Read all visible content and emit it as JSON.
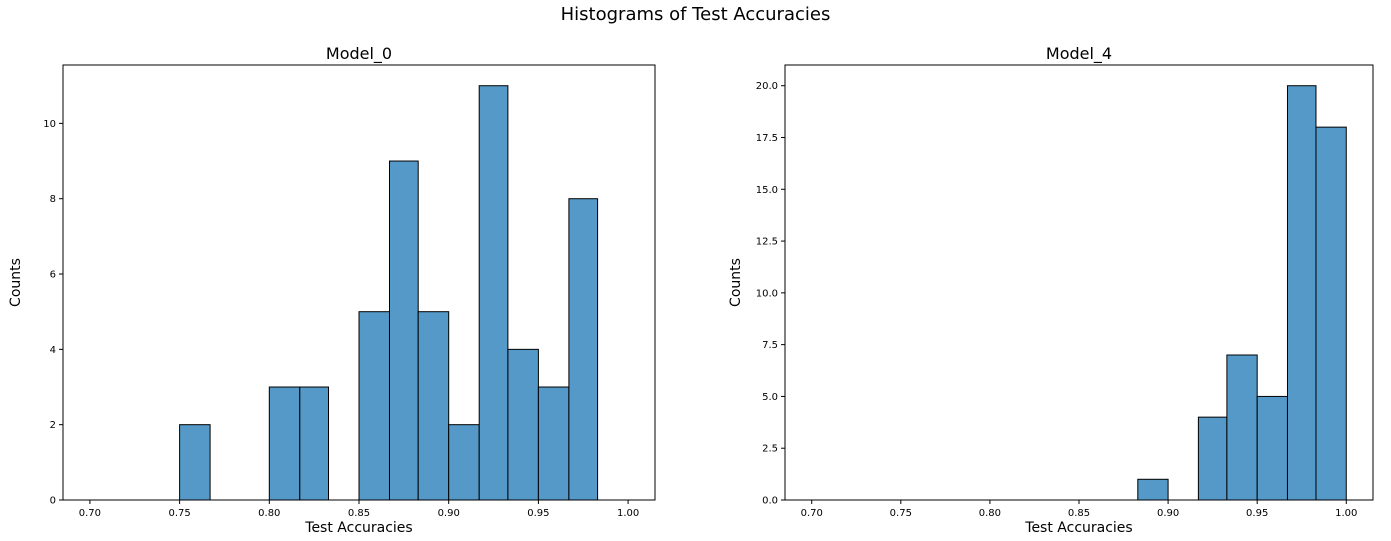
{
  "figure": {
    "title": "Histograms of Test Accuracies"
  },
  "colors": {
    "bar_fill": "#5499c7",
    "bar_edge": "#000000",
    "axes": "#000000"
  },
  "chart_data": [
    {
      "type": "bar",
      "title": "Model_0",
      "xlabel": "Test Accuracies",
      "ylabel": "Counts",
      "xlim": [
        0.685,
        1.015
      ],
      "ylim": [
        0,
        11.55
      ],
      "xticks": [
        "0.70",
        "0.75",
        "0.80",
        "0.85",
        "0.90",
        "0.95",
        "1.00"
      ],
      "yticks": [
        "0",
        "2",
        "4",
        "6",
        "8",
        "10"
      ],
      "bin_edges": [
        0.75,
        0.767,
        0.8,
        0.817,
        0.833,
        0.85,
        0.867,
        0.883,
        0.9,
        0.917,
        0.933,
        0.95,
        0.967,
        0.983
      ],
      "bars": [
        {
          "x0": 0.75,
          "x1": 0.767,
          "count": 2
        },
        {
          "x0": 0.8,
          "x1": 0.817,
          "count": 3
        },
        {
          "x0": 0.817,
          "x1": 0.833,
          "count": 3
        },
        {
          "x0": 0.85,
          "x1": 0.867,
          "count": 5
        },
        {
          "x0": 0.867,
          "x1": 0.883,
          "count": 9
        },
        {
          "x0": 0.883,
          "x1": 0.9,
          "count": 5
        },
        {
          "x0": 0.9,
          "x1": 0.917,
          "count": 2
        },
        {
          "x0": 0.917,
          "x1": 0.933,
          "count": 11
        },
        {
          "x0": 0.933,
          "x1": 0.95,
          "count": 4
        },
        {
          "x0": 0.95,
          "x1": 0.967,
          "count": 3
        },
        {
          "x0": 0.967,
          "x1": 0.983,
          "count": 8
        }
      ]
    },
    {
      "type": "bar",
      "title": "Model_4",
      "xlabel": "Test Accuracies",
      "ylabel": "Counts",
      "xlim": [
        0.685,
        1.015
      ],
      "ylim": [
        0,
        21
      ],
      "xticks": [
        "0.70",
        "0.75",
        "0.80",
        "0.85",
        "0.90",
        "0.95",
        "1.00"
      ],
      "yticks": [
        "0.0",
        "2.5",
        "5.0",
        "7.5",
        "10.0",
        "12.5",
        "15.0",
        "17.5",
        "20.0"
      ],
      "bars": [
        {
          "x0": 0.883,
          "x1": 0.9,
          "count": 1
        },
        {
          "x0": 0.917,
          "x1": 0.933,
          "count": 4
        },
        {
          "x0": 0.933,
          "x1": 0.95,
          "count": 7
        },
        {
          "x0": 0.95,
          "x1": 0.967,
          "count": 5
        },
        {
          "x0": 0.967,
          "x1": 0.983,
          "count": 20
        },
        {
          "x0": 0.983,
          "x1": 1.0,
          "count": 18
        }
      ]
    }
  ]
}
